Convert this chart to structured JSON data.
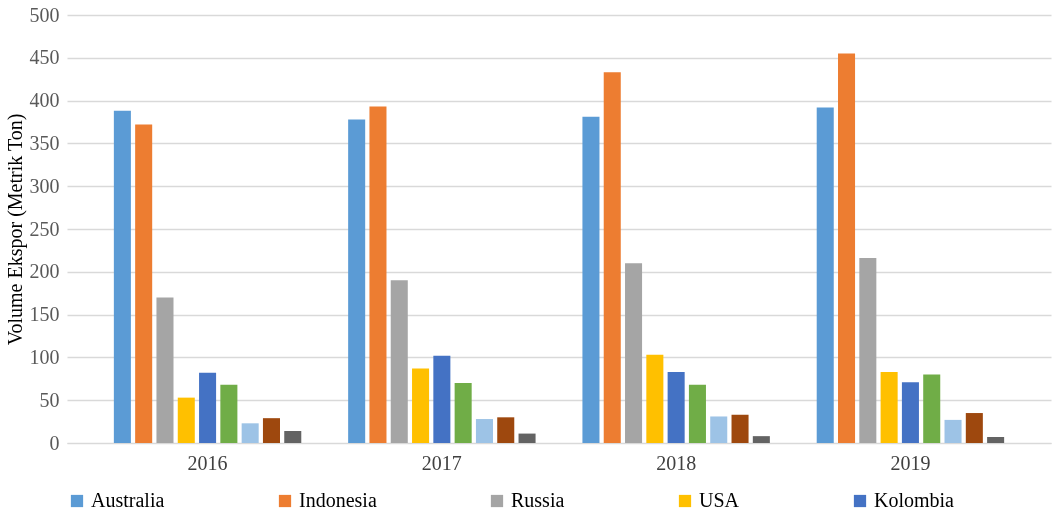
{
  "chart_data": {
    "type": "bar",
    "ylabel": "Volume Ekspor (Metrik Ton)",
    "categories": [
      "2016",
      "2017",
      "2018",
      "2019"
    ],
    "series": [
      {
        "name": "Australia",
        "color": "#5b9bd5",
        "values": [
          388,
          378,
          381,
          392
        ]
      },
      {
        "name": "Indonesia",
        "color": "#ed7d31",
        "values": [
          372,
          393,
          433,
          455
        ]
      },
      {
        "name": "Russia",
        "color": "#a5a5a5",
        "values": [
          170,
          190,
          210,
          216
        ]
      },
      {
        "name": "USA",
        "color": "#ffc000",
        "values": [
          53,
          87,
          103,
          83
        ]
      },
      {
        "name": "Kolombia",
        "color": "#4472c4",
        "values": [
          82,
          102,
          83,
          71
        ]
      },
      {
        "color": "#70ad47",
        "values": [
          68,
          70,
          68,
          80
        ]
      },
      {
        "color": "#9dc3e6",
        "values": [
          23,
          28,
          31,
          27
        ]
      },
      {
        "color": "#9e480e",
        "values": [
          29,
          30,
          33,
          35
        ]
      },
      {
        "color": "#636363",
        "values": [
          14,
          11,
          8,
          7
        ]
      }
    ],
    "ylim": [
      0,
      500
    ],
    "yticks": [
      0,
      50,
      100,
      150,
      200,
      250,
      300,
      350,
      400,
      450,
      500
    ],
    "grid": "y",
    "legend": "bottom"
  }
}
